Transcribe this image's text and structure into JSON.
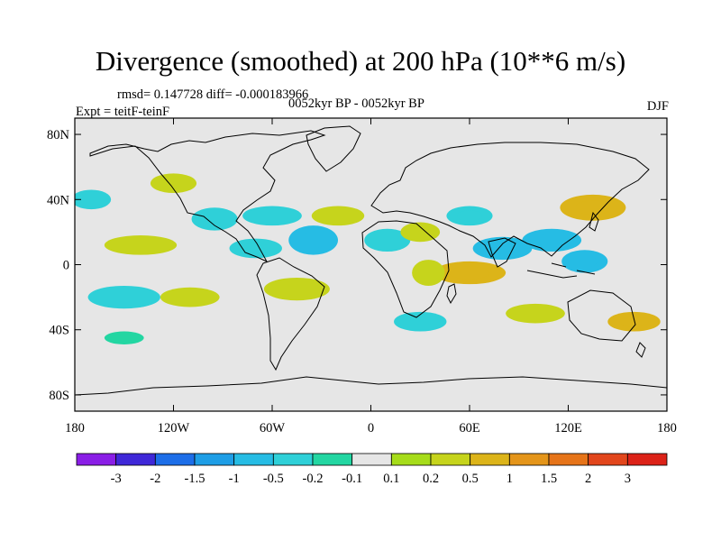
{
  "title": "Divergence (smoothed) at 200 hPa (10**6 m/s)",
  "stats": "rmsd= 0.147728 diff= -0.000183966",
  "expt": "Expt = teitF-teinF",
  "period": "0052kyr BP - 0052kyr BP",
  "season": "DJF",
  "chart_data": {
    "type": "heatmap",
    "title": "Divergence (smoothed) at 200 hPa (10**6 m/s)",
    "projection": "cylindrical equidistant",
    "xlim": [
      -180,
      180
    ],
    "ylim": [
      -90,
      90
    ],
    "x_ticks": [
      {
        "value": -180,
        "label": "180"
      },
      {
        "value": -120,
        "label": "120W"
      },
      {
        "value": -60,
        "label": "60W"
      },
      {
        "value": 0,
        "label": "0"
      },
      {
        "value": 60,
        "label": "60E"
      },
      {
        "value": 120,
        "label": "120E"
      },
      {
        "value": 180,
        "label": "180"
      }
    ],
    "y_ticks": [
      {
        "value": 80,
        "label": "80N"
      },
      {
        "value": 40,
        "label": "40N"
      },
      {
        "value": 0,
        "label": "0"
      },
      {
        "value": -40,
        "label": "40S"
      },
      {
        "value": -80,
        "label": "80S"
      }
    ],
    "colorbar": {
      "levels": [
        "-3",
        "-2",
        "-1.5",
        "-1",
        "-0.5",
        "-0.2",
        "-0.1",
        "0.1",
        "0.2",
        "0.5",
        "1",
        "1.5",
        "2",
        "3"
      ],
      "colors": [
        "#8a1ee6",
        "#3f28d8",
        "#1d6ee8",
        "#1e9ee6",
        "#26bce4",
        "#2fd0d8",
        "#23d6a2",
        "#e6e6e6",
        "#a6dc1a",
        "#c6d41c",
        "#dcb419",
        "#e4951a",
        "#e67419",
        "#e2461c",
        "#dc2218"
      ]
    },
    "features": [
      {
        "lon": -170,
        "lat": 40,
        "rx": 12,
        "ry": 6,
        "value": -0.3
      },
      {
        "lon": -120,
        "lat": 50,
        "rx": 14,
        "ry": 6,
        "value": 0.3
      },
      {
        "lon": -95,
        "lat": 28,
        "rx": 14,
        "ry": 7,
        "value": -0.4
      },
      {
        "lon": -140,
        "lat": 12,
        "rx": 22,
        "ry": 6,
        "value": 0.3
      },
      {
        "lon": -70,
        "lat": 10,
        "rx": 16,
        "ry": 6,
        "value": -0.5
      },
      {
        "lon": -60,
        "lat": 30,
        "rx": 18,
        "ry": 6,
        "value": -0.3
      },
      {
        "lon": -35,
        "lat": 15,
        "rx": 15,
        "ry": 9,
        "value": -0.6
      },
      {
        "lon": -20,
        "lat": 30,
        "rx": 16,
        "ry": 6,
        "value": 0.3
      },
      {
        "lon": 10,
        "lat": 15,
        "rx": 14,
        "ry": 7,
        "value": -0.3
      },
      {
        "lon": 30,
        "lat": 20,
        "rx": 12,
        "ry": 6,
        "value": 0.4
      },
      {
        "lon": 60,
        "lat": 30,
        "rx": 14,
        "ry": 6,
        "value": -0.5
      },
      {
        "lon": 80,
        "lat": 10,
        "rx": 18,
        "ry": 7,
        "value": -0.7
      },
      {
        "lon": 110,
        "lat": 15,
        "rx": 18,
        "ry": 7,
        "value": -0.9
      },
      {
        "lon": 135,
        "lat": 35,
        "rx": 20,
        "ry": 8,
        "value": 0.9
      },
      {
        "lon": 130,
        "lat": 2,
        "rx": 14,
        "ry": 7,
        "value": -0.6
      },
      {
        "lon": 60,
        "lat": -5,
        "rx": 22,
        "ry": 7,
        "value": 0.5
      },
      {
        "lon": 35,
        "lat": -5,
        "rx": 10,
        "ry": 8,
        "value": 0.4
      },
      {
        "lon": -45,
        "lat": -15,
        "rx": 20,
        "ry": 7,
        "value": 0.4
      },
      {
        "lon": -150,
        "lat": -20,
        "rx": 22,
        "ry": 7,
        "value": -0.4
      },
      {
        "lon": -110,
        "lat": -20,
        "rx": 18,
        "ry": 6,
        "value": 0.3
      },
      {
        "lon": 30,
        "lat": -35,
        "rx": 16,
        "ry": 6,
        "value": -0.3
      },
      {
        "lon": 100,
        "lat": -30,
        "rx": 18,
        "ry": 6,
        "value": 0.4
      },
      {
        "lon": 160,
        "lat": -35,
        "rx": 16,
        "ry": 6,
        "value": 0.5
      },
      {
        "lon": -150,
        "lat": -45,
        "rx": 12,
        "ry": 4,
        "value": -0.2
      }
    ]
  }
}
